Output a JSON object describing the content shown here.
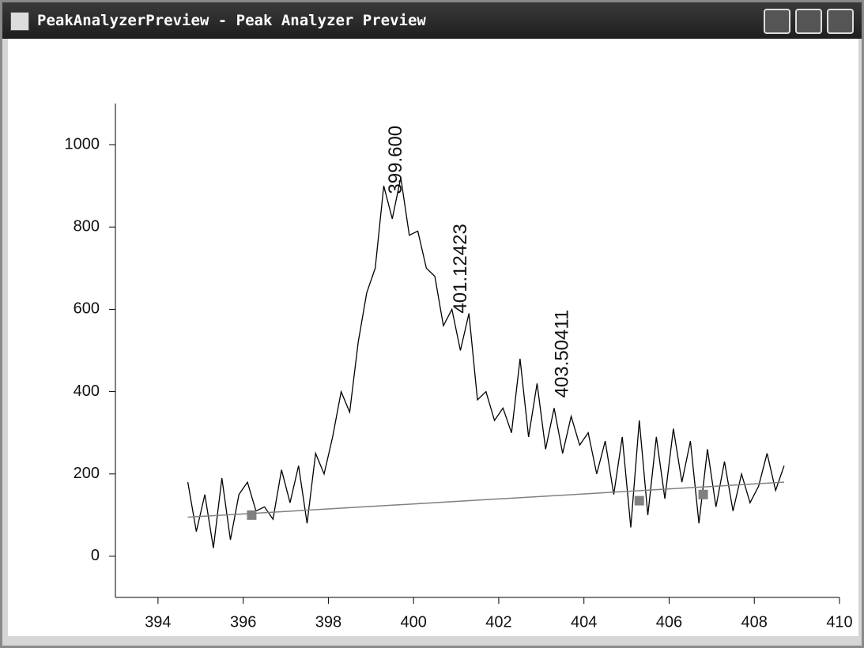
{
  "window": {
    "title": "PeakAnalyzerPreview - Peak Analyzer Preview"
  },
  "chart_data": {
    "type": "line",
    "x": [
      394.7,
      394.9,
      395.1,
      395.3,
      395.5,
      395.7,
      395.9,
      396.1,
      396.3,
      396.5,
      396.7,
      396.9,
      397.1,
      397.3,
      397.5,
      397.7,
      397.9,
      398.1,
      398.3,
      398.5,
      398.7,
      398.9,
      399.1,
      399.3,
      399.5,
      399.7,
      399.9,
      400.1,
      400.3,
      400.5,
      400.7,
      400.9,
      401.1,
      401.3,
      401.5,
      401.7,
      401.9,
      402.1,
      402.3,
      402.5,
      402.7,
      402.9,
      403.1,
      403.3,
      403.5,
      403.7,
      403.9,
      404.1,
      404.3,
      404.5,
      404.7,
      404.9,
      405.1,
      405.3,
      405.5,
      405.7,
      405.9,
      406.1,
      406.3,
      406.5,
      406.7,
      406.9,
      407.1,
      407.3,
      407.5,
      407.7,
      407.9,
      408.1,
      408.3,
      408.5,
      408.7
    ],
    "series": [
      {
        "color": "#000000",
        "values": [
          180,
          60,
          150,
          20,
          190,
          40,
          150,
          180,
          110,
          120,
          90,
          210,
          130,
          220,
          80,
          250,
          200,
          290,
          400,
          350,
          520,
          640,
          700,
          900,
          820,
          920,
          780,
          790,
          700,
          680,
          560,
          600,
          500,
          590,
          380,
          400,
          330,
          360,
          300,
          480,
          290,
          420,
          260,
          360,
          250,
          340,
          270,
          300,
          200,
          280,
          150,
          290,
          70,
          330,
          100,
          290,
          140,
          310,
          180,
          280,
          80,
          260,
          120,
          230,
          110,
          200,
          130,
          170,
          250,
          160,
          220
        ]
      }
    ],
    "baseline": {
      "color": "#808080",
      "x": [
        394.7,
        408.7
      ],
      "values": [
        95,
        180
      ]
    },
    "anchors": {
      "color": "#808080",
      "x": [
        396.2,
        405.3,
        406.8
      ],
      "values": [
        100,
        135,
        150
      ]
    },
    "annotations": [
      {
        "text": "399.600",
        "x": 399.6,
        "y": 880
      },
      {
        "text": "401.12423",
        "x": 401.12423,
        "y": 590
      },
      {
        "text": "403.50411",
        "x": 403.50411,
        "y": 385
      }
    ],
    "xlim": [
      393,
      410
    ],
    "xticks": [
      394,
      396,
      398,
      400,
      402,
      404,
      406,
      408,
      410
    ],
    "ylim": [
      -100,
      1100
    ],
    "yticks": [
      0,
      200,
      400,
      600,
      800,
      1000
    ]
  }
}
